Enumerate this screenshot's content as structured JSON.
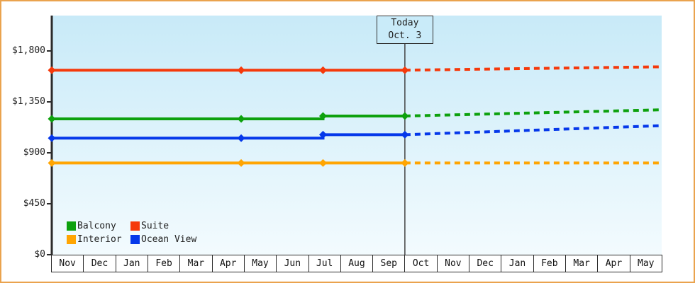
{
  "colors": {
    "frame_border": "#EAA34E",
    "page_bg": "#FFFFFF",
    "plot_bg_top": "#C8EAF8",
    "plot_bg_bottom": "#F3FBFE",
    "axis": "#2B2B2B",
    "today_line": "#444444",
    "today_box_bg": "#C9EBF9",
    "text": "#222222"
  },
  "legend": {
    "items": [
      {
        "label": "Balcony",
        "color": "#0DA10D"
      },
      {
        "label": "Suite",
        "color": "#F5390B"
      },
      {
        "label": "Interior",
        "color": "#FFA502"
      },
      {
        "label": "Ocean View",
        "color": "#0538EA"
      }
    ]
  },
  "chart_data": {
    "type": "line",
    "title": "",
    "xlabel": "",
    "ylabel": "",
    "ylim": [
      0,
      2110
    ],
    "grid": false,
    "legend_position": "bottom-left-inside",
    "x_categories": [
      "Nov",
      "Dec",
      "Jan",
      "Feb",
      "Mar",
      "Apr",
      "May",
      "Jun",
      "Jul",
      "Aug",
      "Sep",
      "Oct",
      "Nov",
      "Dec",
      "Jan",
      "Feb",
      "Mar",
      "Apr",
      "May"
    ],
    "y_ticks": [
      {
        "value": 1800,
        "label": "$1,800"
      },
      {
        "value": 1350,
        "label": "$1,350"
      },
      {
        "value": 900,
        "label": "$900"
      },
      {
        "value": 450,
        "label": "$450"
      },
      {
        "value": 0,
        "label": "$0"
      }
    ],
    "today": {
      "t": 11,
      "line1": "Today",
      "line2": "Oct. 3"
    },
    "series": [
      {
        "name": "Suite",
        "color": "#F5390B",
        "history": [
          [
            0,
            1630
          ],
          [
            5.9,
            1630
          ],
          [
            8.45,
            1630
          ],
          [
            11,
            1630
          ]
        ],
        "forecast": [
          [
            11,
            1630
          ],
          [
            19,
            1660
          ]
        ],
        "markers": [
          [
            0,
            1630
          ],
          [
            5.9,
            1630
          ],
          [
            8.45,
            1630
          ],
          [
            11,
            1630
          ]
        ]
      },
      {
        "name": "Balcony",
        "color": "#0DA10D",
        "history": [
          [
            0,
            1200
          ],
          [
            5.9,
            1200
          ],
          [
            8.45,
            1200
          ],
          [
            8.45,
            1225
          ],
          [
            11,
            1225
          ]
        ],
        "forecast": [
          [
            11,
            1225
          ],
          [
            19,
            1280
          ]
        ],
        "markers": [
          [
            0,
            1200
          ],
          [
            5.9,
            1200
          ],
          [
            8.45,
            1225
          ],
          [
            11,
            1225
          ]
        ]
      },
      {
        "name": "Ocean View",
        "color": "#0538EA",
        "history": [
          [
            0,
            1030
          ],
          [
            5.9,
            1030
          ],
          [
            8.45,
            1030
          ],
          [
            8.45,
            1060
          ],
          [
            11,
            1060
          ]
        ],
        "forecast": [
          [
            11,
            1060
          ],
          [
            19,
            1140
          ]
        ],
        "markers": [
          [
            0,
            1030
          ],
          [
            5.9,
            1030
          ],
          [
            8.45,
            1060
          ],
          [
            11,
            1060
          ]
        ]
      },
      {
        "name": "Interior",
        "color": "#FFA502",
        "history": [
          [
            0,
            810
          ],
          [
            5.9,
            810
          ],
          [
            8.45,
            810
          ],
          [
            11,
            810
          ]
        ],
        "forecast": [
          [
            11,
            810
          ],
          [
            19,
            810
          ]
        ],
        "markers": [
          [
            0,
            810
          ],
          [
            5.9,
            810
          ],
          [
            8.45,
            810
          ],
          [
            11,
            810
          ]
        ]
      }
    ]
  }
}
